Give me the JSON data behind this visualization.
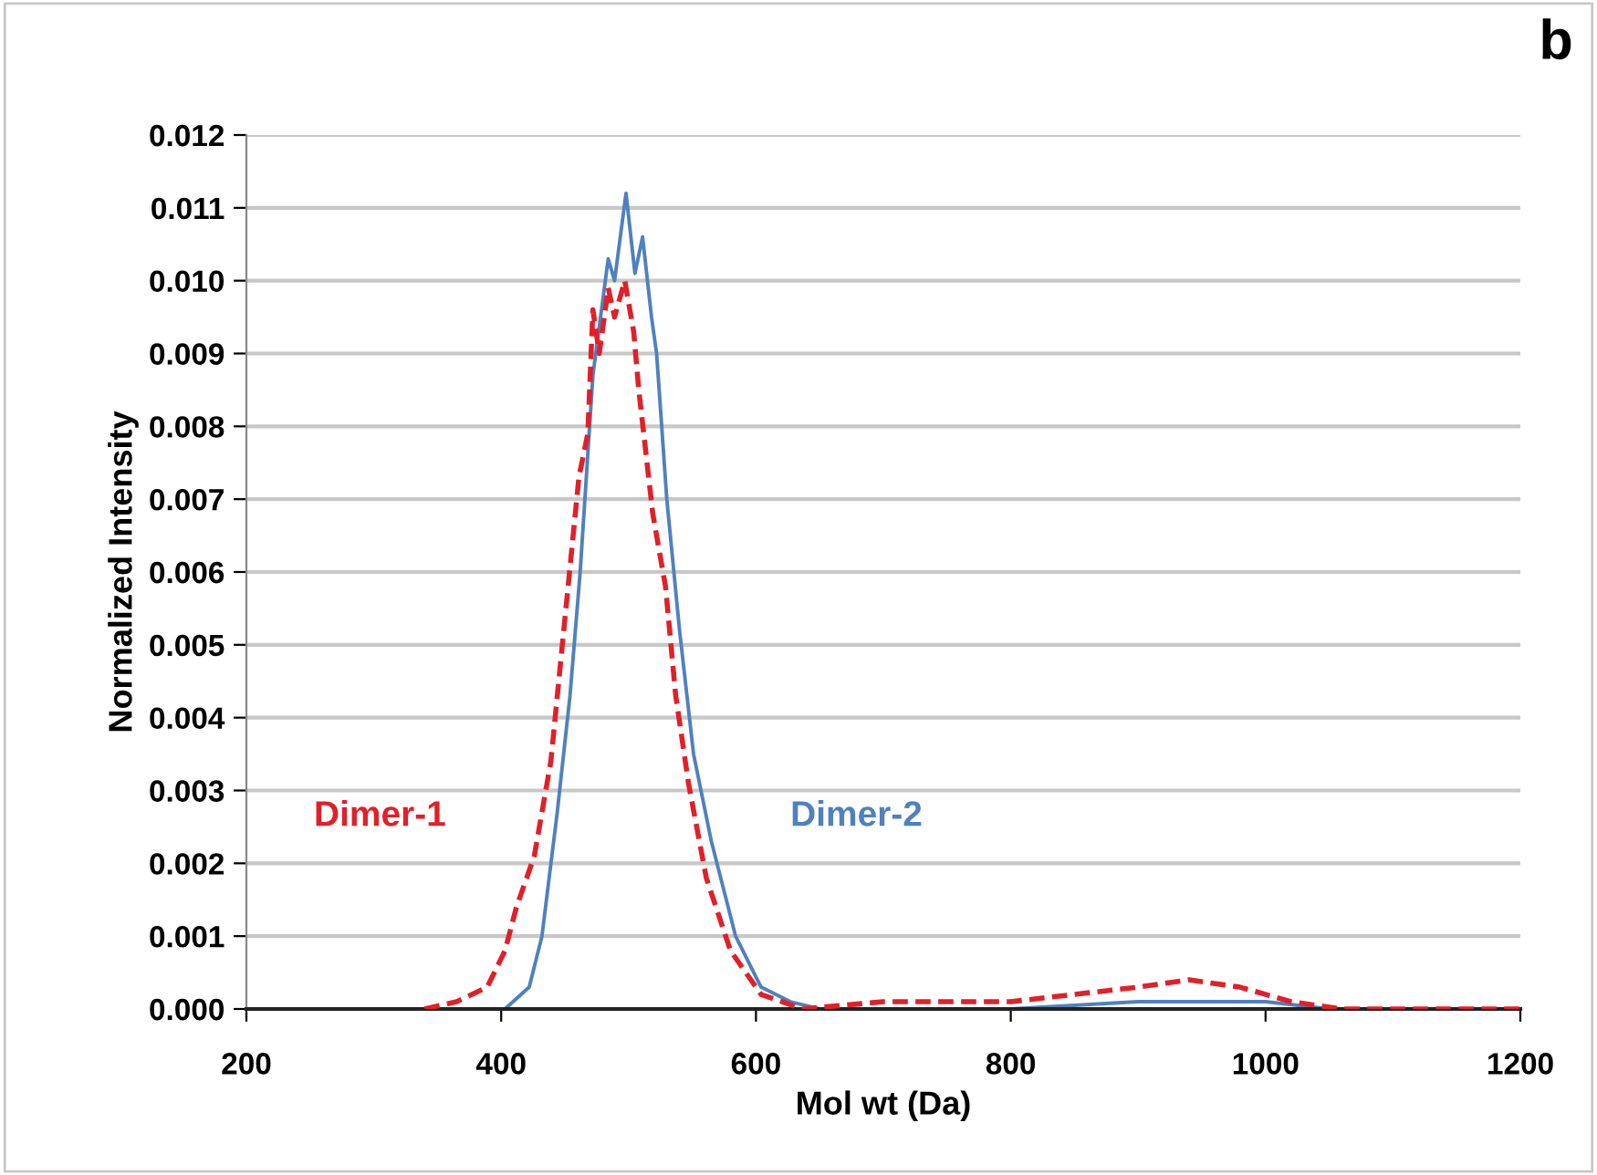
{
  "chart_data": {
    "type": "line",
    "xlabel": "Mol wt (Da)",
    "ylabel": "Normalized Intensity",
    "xlim": [
      200,
      1200
    ],
    "xticks": [
      200,
      400,
      600,
      800,
      1000,
      1200
    ],
    "ylim": [
      0,
      0.012
    ],
    "yticks": [
      {
        "value": 0,
        "label": "0.000"
      },
      {
        "value": 0.001,
        "label": "0.001"
      },
      {
        "value": 0.002,
        "label": "0.002"
      },
      {
        "value": 0.003,
        "label": "0.003"
      },
      {
        "value": 0.004,
        "label": "0.004"
      },
      {
        "value": 0.005,
        "label": "0.005"
      },
      {
        "value": 0.006,
        "label": "0.006"
      },
      {
        "value": 0.007,
        "label": "0.007"
      },
      {
        "value": 0.008,
        "label": "0.008"
      },
      {
        "value": 0.009,
        "label": "0.009"
      },
      {
        "value": 0.01,
        "label": "0.010"
      },
      {
        "value": 0.011,
        "label": "0.011"
      },
      {
        "value": 0.012,
        "label": "0.012"
      }
    ],
    "grid": "y",
    "legend": false,
    "marker": "none",
    "annotations": [
      "b"
    ],
    "series": [
      {
        "name": "Dimer-1",
        "color": "#e0202a",
        "line_style": "dashed",
        "x": [
          340,
          365,
          389,
          403,
          412,
          426,
          439,
          448,
          461,
          468,
          472,
          477,
          484,
          489,
          497,
          504,
          508,
          519,
          529,
          537,
          547,
          561,
          580,
          604,
          637,
          700,
          800,
          850,
          900,
          940,
          980,
          1020,
          1060,
          1100,
          1200
        ],
        "values": [
          0,
          0.0001,
          0.0003,
          0.0008,
          0.0014,
          0.0021,
          0.0034,
          0.005,
          0.0073,
          0.0079,
          0.0096,
          0.009,
          0.0099,
          0.0095,
          0.01,
          0.0093,
          0.0085,
          0.0068,
          0.0058,
          0.0043,
          0.0031,
          0.0018,
          0.0008,
          0.0002,
          0,
          0.0001,
          0.0001,
          0.0002,
          0.0003,
          0.0004,
          0.0003,
          0.0001,
          0,
          0,
          0
        ]
      },
      {
        "name": "Dimer-2",
        "color": "#4f81bd",
        "line_style": "solid",
        "x": [
          250,
          403,
          422,
          432,
          444,
          454,
          462,
          472,
          484,
          489,
          498,
          505,
          511,
          518,
          522,
          530,
          540,
          551,
          565,
          584,
          604,
          627,
          650,
          800,
          900,
          950,
          1000,
          1050,
          1100,
          1200
        ],
        "values": [
          0,
          0,
          0.0003,
          0.001,
          0.0027,
          0.0043,
          0.006,
          0.0087,
          0.0103,
          0.01,
          0.0112,
          0.0101,
          0.0106,
          0.0095,
          0.009,
          0.007,
          0.0052,
          0.0035,
          0.0023,
          0.001,
          0.0003,
          0.0001,
          0,
          0,
          0.0001,
          0.0001,
          0.0001,
          0,
          0,
          0
        ]
      }
    ]
  }
}
